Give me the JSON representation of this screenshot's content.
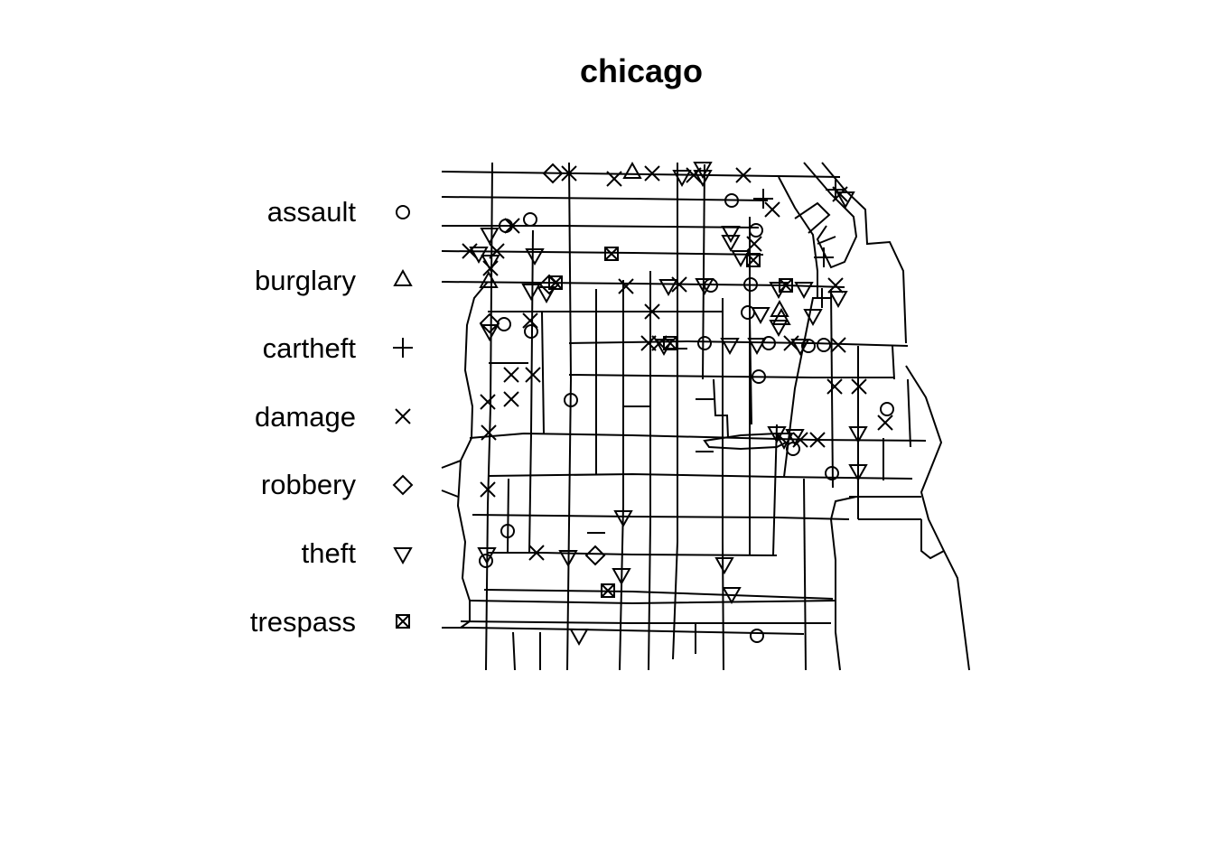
{
  "title": "chicago",
  "legend": [
    {
      "label": "assault",
      "symbol": "circle"
    },
    {
      "label": "burglary",
      "symbol": "triangle-up"
    },
    {
      "label": "cartheft",
      "symbol": "plus"
    },
    {
      "label": "damage",
      "symbol": "cross"
    },
    {
      "label": "robbery",
      "symbol": "diamond"
    },
    {
      "label": "theft",
      "symbol": "triangle-down"
    },
    {
      "label": "trespass",
      "symbol": "boxed-cross"
    }
  ],
  "chart_data": {
    "type": "scatter",
    "title": "chicago",
    "background": "street-network",
    "marker_color": "#000000",
    "series": [
      {
        "name": "assault",
        "symbol": "circle"
      },
      {
        "name": "burglary",
        "symbol": "triangle-up"
      },
      {
        "name": "cartheft",
        "symbol": "plus"
      },
      {
        "name": "damage",
        "symbol": "cross"
      },
      {
        "name": "robbery",
        "symbol": "diamond"
      },
      {
        "name": "theft",
        "symbol": "triangle-down"
      },
      {
        "name": "trespass",
        "symbol": "boxed-cross"
      }
    ]
  }
}
